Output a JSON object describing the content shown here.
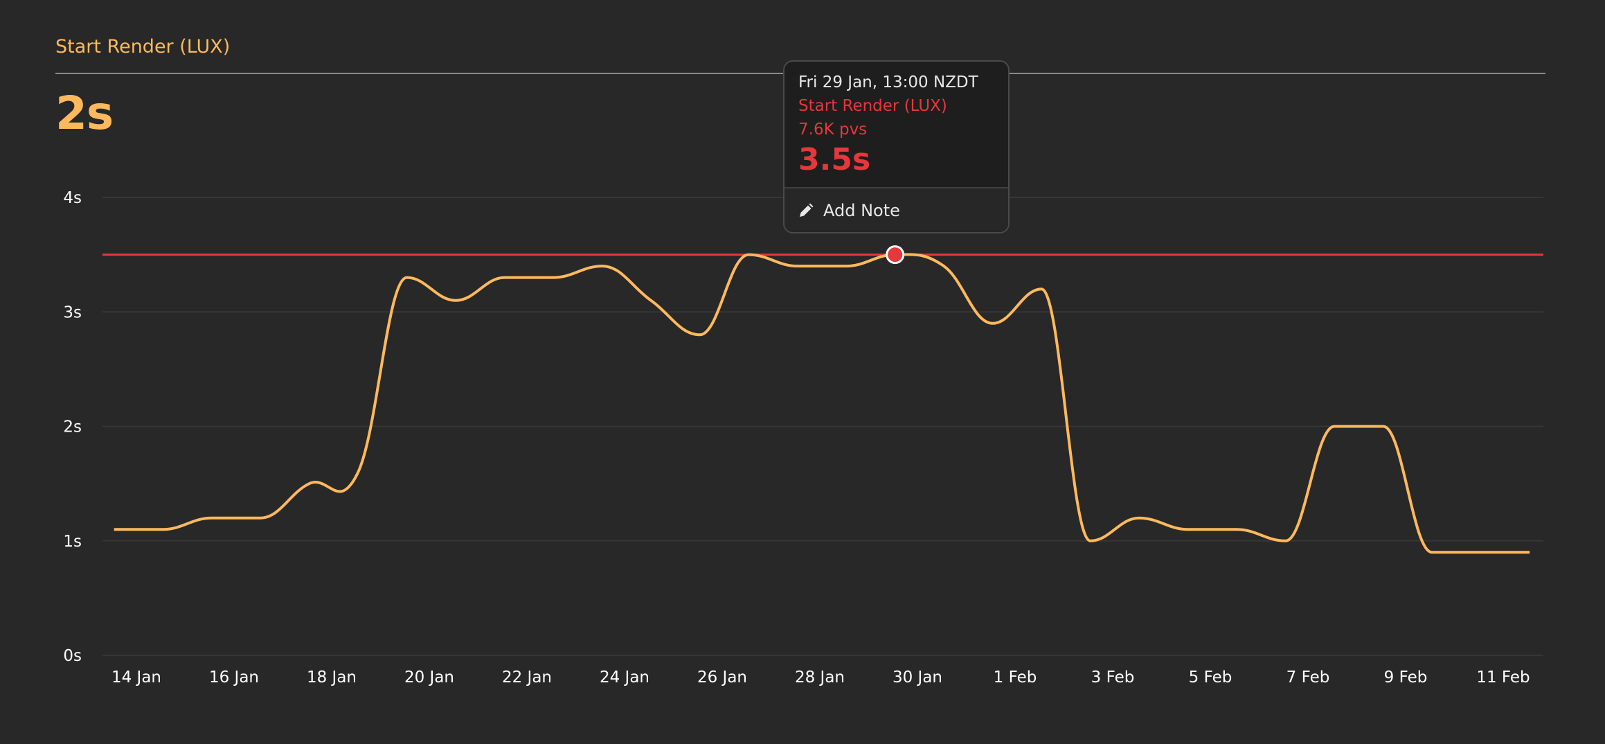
{
  "header": {
    "title": "Start Render (LUX)",
    "summary_value": "2s"
  },
  "colors": {
    "background": "#282828",
    "series": "#fdb95c",
    "threshold": "#e5383b",
    "grid": "#363636"
  },
  "tooltip": {
    "date": "Fri 29 Jan, 13:00 NZDT",
    "series": "Start Render (LUX)",
    "pageviews": "7.6K pvs",
    "value": "3.5s",
    "add_note_label": "Add Note",
    "add_note_icon": "pencil-icon"
  },
  "chart_data": {
    "type": "line",
    "title": "Start Render (LUX)",
    "xlabel": "",
    "ylabel": "",
    "ylim": [
      0,
      4
    ],
    "y_ticks": [
      "0s",
      "1s",
      "2s",
      "3s",
      "4s"
    ],
    "x_ticks": [
      "14 Jan",
      "16 Jan",
      "18 Jan",
      "20 Jan",
      "22 Jan",
      "24 Jan",
      "26 Jan",
      "28 Jan",
      "30 Jan",
      "1 Feb",
      "3 Feb",
      "5 Feb",
      "7 Feb",
      "9 Feb",
      "11 Feb"
    ],
    "grid": true,
    "threshold": 3.5,
    "highlighted_point": {
      "x": "2021-01-29 13:00",
      "y": 3.5
    },
    "series": [
      {
        "x": [
          "13 Jan",
          "14 Jan",
          "15 Jan",
          "16 Jan",
          "17 Jan",
          "18 Jan",
          "19 Jan",
          "20 Jan",
          "21 Jan",
          "22 Jan",
          "23 Jan",
          "24 Jan",
          "25 Jan",
          "26 Jan",
          "27 Jan",
          "28 Jan",
          "29 Jan",
          "30 Jan",
          "31 Jan",
          "1 Feb",
          "2 Feb",
          "3 Feb",
          "4 Feb",
          "5 Feb",
          "6 Feb",
          "7 Feb",
          "8 Feb",
          "9 Feb",
          "10 Feb",
          "11 Feb"
        ],
        "values": [
          1.1,
          1.1,
          1.2,
          1.2,
          1.5,
          1.6,
          3.3,
          3.1,
          3.3,
          3.3,
          3.4,
          3.1,
          2.8,
          3.5,
          3.4,
          3.4,
          3.5,
          3.4,
          2.9,
          3.2,
          1.0,
          1.2,
          1.1,
          1.1,
          1.0,
          2.0,
          2.0,
          0.9,
          0.9,
          0.9
        ]
      }
    ]
  }
}
